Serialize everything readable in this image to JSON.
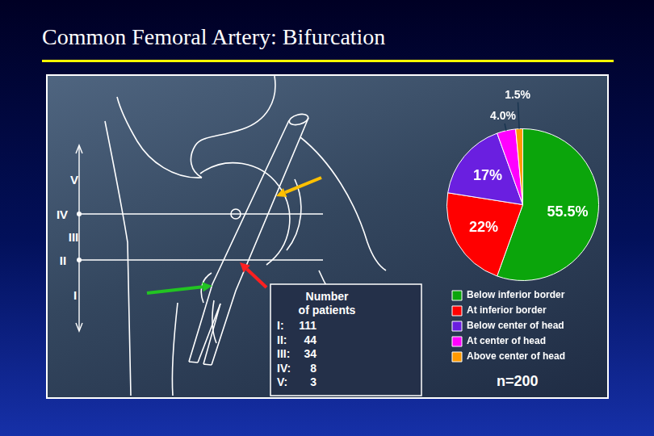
{
  "title": "Common Femoral Artery: Bifurcation",
  "diagram": {
    "levels": [
      "V",
      "IV",
      "III",
      "II",
      "I"
    ]
  },
  "table": {
    "header": [
      "Number",
      "of patients"
    ],
    "rows": [
      {
        "label": "I:",
        "value": 111
      },
      {
        "label": "II:",
        "value": 44
      },
      {
        "label": "III:",
        "value": 34
      },
      {
        "label": "IV:",
        "value": 8
      },
      {
        "label": "V:",
        "value": 3
      }
    ]
  },
  "chart_data": {
    "type": "pie",
    "categories": [
      "Below inferior border",
      "At inferior border",
      "Below center of head",
      "At center of head",
      "Above center of head"
    ],
    "values": [
      55.5,
      22,
      17,
      4.0,
      1.5
    ],
    "value_labels": [
      "55.5%",
      "22%",
      "17%",
      "4.0%",
      "1.5%"
    ],
    "colors": [
      "#0ba50b",
      "#ff0000",
      "#6a1fe0",
      "#ff00ff",
      "#ff9900"
    ],
    "data_labels": true,
    "legend": "bottom",
    "annotations": [
      "n=200"
    ]
  }
}
